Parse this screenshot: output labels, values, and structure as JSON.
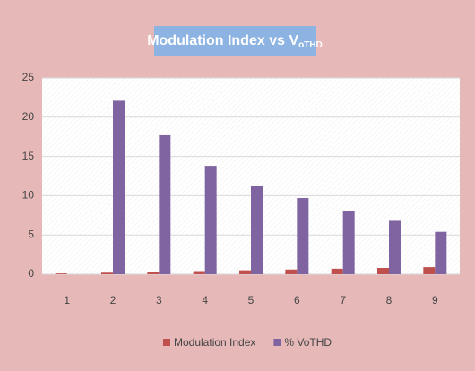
{
  "chart_data": {
    "type": "bar",
    "title": "Modulation Index vs V",
    "title_subscript": "oTHD",
    "categories": [
      "1",
      "2",
      "3",
      "4",
      "5",
      "6",
      "7",
      "8",
      "9"
    ],
    "series": [
      {
        "name": "Modulation Index",
        "color": "#c0504d",
        "values": [
          0.1,
          0.2,
          0.3,
          0.4,
          0.5,
          0.6,
          0.7,
          0.8,
          0.9
        ]
      },
      {
        "name": "% VoTHD",
        "color": "#8064a2",
        "values": [
          0,
          22.1,
          17.7,
          13.8,
          11.3,
          9.7,
          8.1,
          6.8,
          5.4
        ]
      }
    ],
    "ylim": [
      0,
      25
    ],
    "yticks": [
      0,
      5,
      10,
      15,
      20,
      25
    ],
    "grid": true,
    "legend": "bottom"
  }
}
